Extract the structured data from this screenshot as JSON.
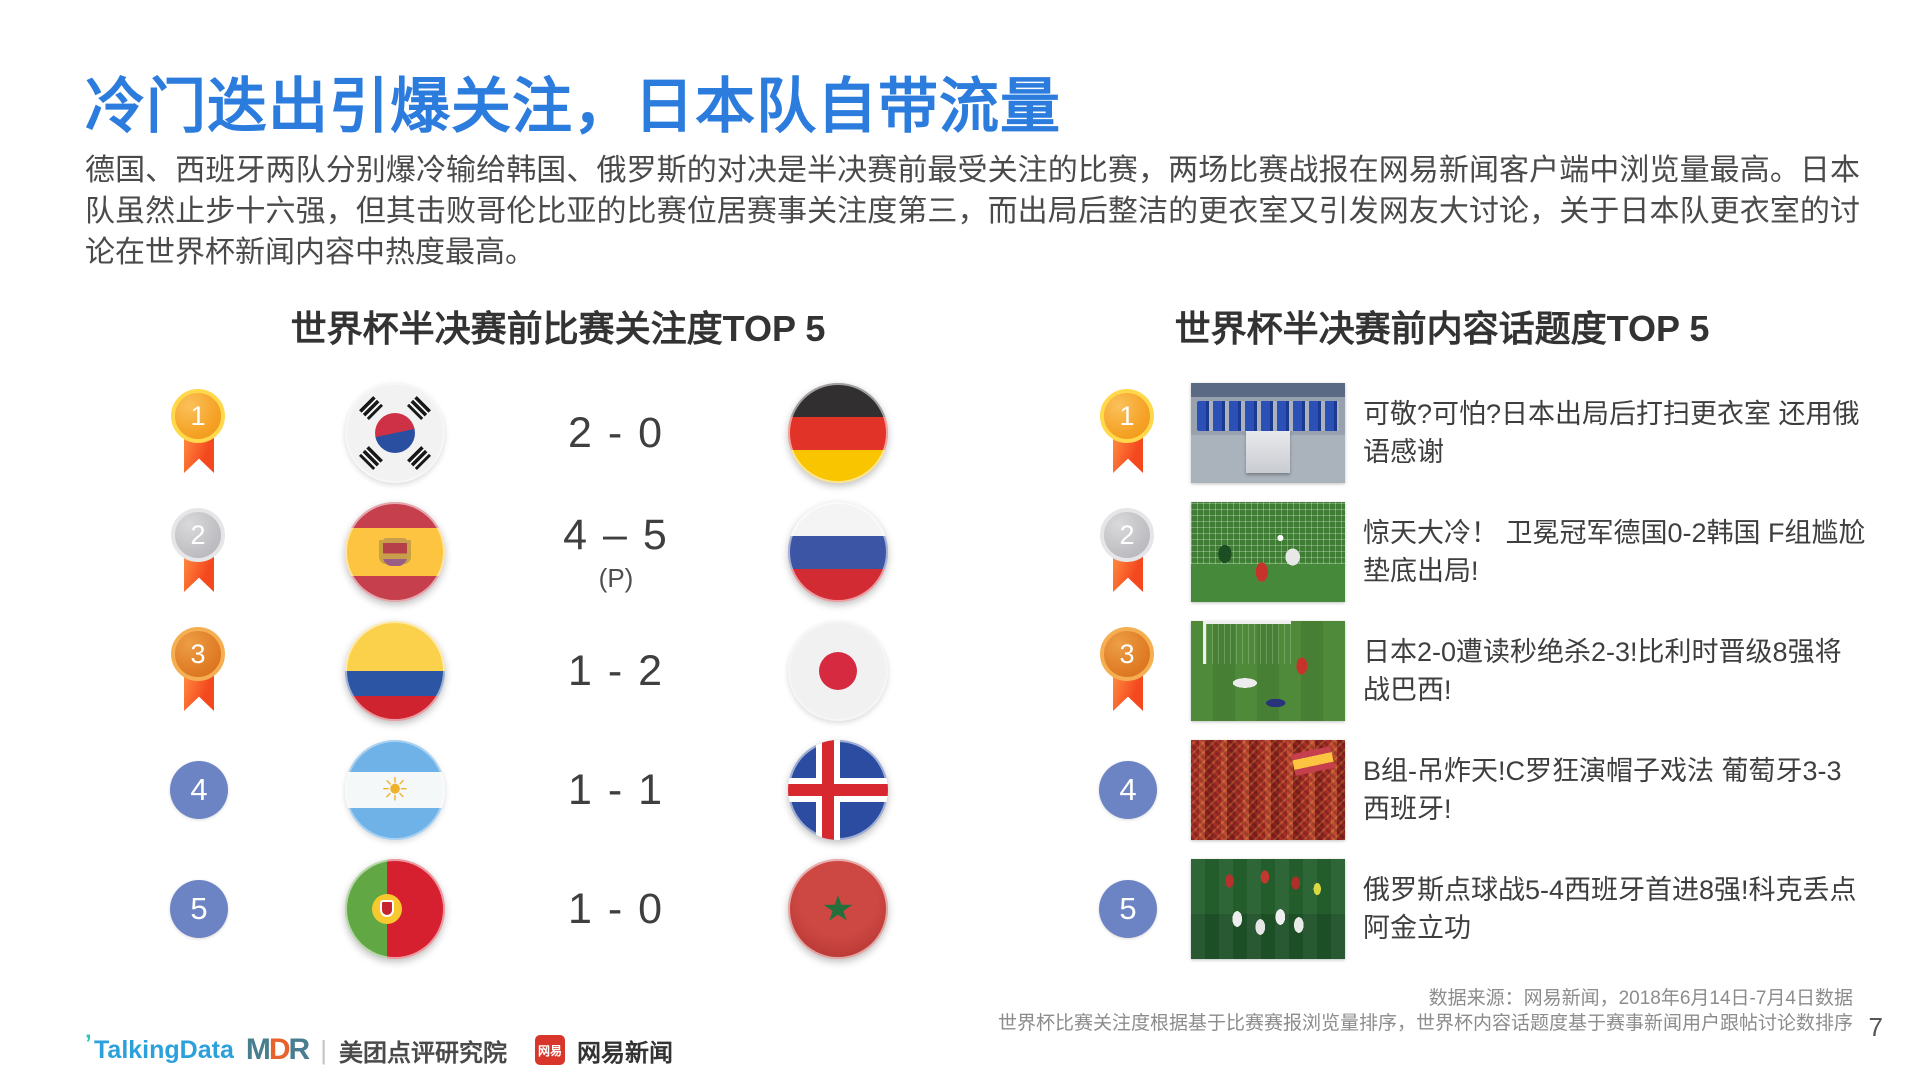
{
  "slide": {
    "title": "冷门迭出引爆关注，日本队自带流量",
    "intro": "德国、西班牙两队分别爆冷输给韩国、俄罗斯的对决是半决赛前最受关注的比赛，两场比赛战报在网易新闻客户端中浏览量最高。日本队虽然止步十六强，但其击败哥伦比亚的比赛位居赛事关注度第三，而出局后整洁的更衣室又引发网友大讨论，关于日本队更衣室的讨论在世界杯新闻内容中热度最高。",
    "page_number": "7"
  },
  "match_ranking": {
    "title": "世界杯半决赛前比赛关注度TOP 5",
    "rows": [
      {
        "rank": "1",
        "team1": "south-korea",
        "score": "2 - 0",
        "team2": "germany"
      },
      {
        "rank": "2",
        "team1": "spain",
        "score": "4 – 5",
        "note": "(P)",
        "team2": "russia"
      },
      {
        "rank": "3",
        "team1": "colombia",
        "score": "1 - 2",
        "team2": "japan"
      },
      {
        "rank": "4",
        "team1": "argentina",
        "score": "1 - 1",
        "team2": "iceland"
      },
      {
        "rank": "5",
        "team1": "portugal",
        "score": "1 - 0",
        "team2": "morocco"
      }
    ]
  },
  "topic_ranking": {
    "title": "世界杯半决赛前内容话题度TOP 5",
    "rows": [
      {
        "rank": "1",
        "headline": "可敬?可怕?日本出局后打扫更衣室 还用俄语感谢",
        "image": "japan-locker-room"
      },
      {
        "rank": "2",
        "headline": "惊天大冷！ 卫冕冠军德国0-2韩国 F组尴尬垫底出局!",
        "image": "germany-korea-upset"
      },
      {
        "rank": "3",
        "headline": "日本2-0遭读秒绝杀2-3!比利时晋级8强将战巴西!",
        "image": "japan-belgium-match"
      },
      {
        "rank": "4",
        "headline": "B组-吊炸天!C罗狂演帽子戏法 葡萄牙3-3西班牙!",
        "image": "portugal-spain-fans"
      },
      {
        "rank": "5",
        "headline": "俄罗斯点球战5-4西班牙首进8强!科克丢点阿金立功",
        "image": "russia-penalty-celebration"
      }
    ]
  },
  "icons": {
    "argentina_sun": "☀"
  },
  "footer": {
    "source_line1": "数据来源：网易新闻，2018年6月14日-7月4日数据",
    "source_line2": "世界杯比赛关注度根据基于比赛赛报浏览量排序，世界杯内容话题度基于赛事新闻用户跟帖讨论数排序",
    "logos": {
      "talkingdata": "TalkingData",
      "mdr_m": "M",
      "mdr_d": "D",
      "mdr_r": "R",
      "separator": "|",
      "meituan": "美团点评研究院",
      "netease_badge": "网易",
      "netease": "网易新闻"
    }
  },
  "colors": {
    "title_blue": "#2C7CDE",
    "body_text": "#4A4A4A",
    "gold": "#F5A226",
    "silver": "#BFBFC3",
    "bronze": "#DF7B24",
    "rank_blue": "#6D84C4",
    "ribbon_orange": "#F4481F"
  }
}
